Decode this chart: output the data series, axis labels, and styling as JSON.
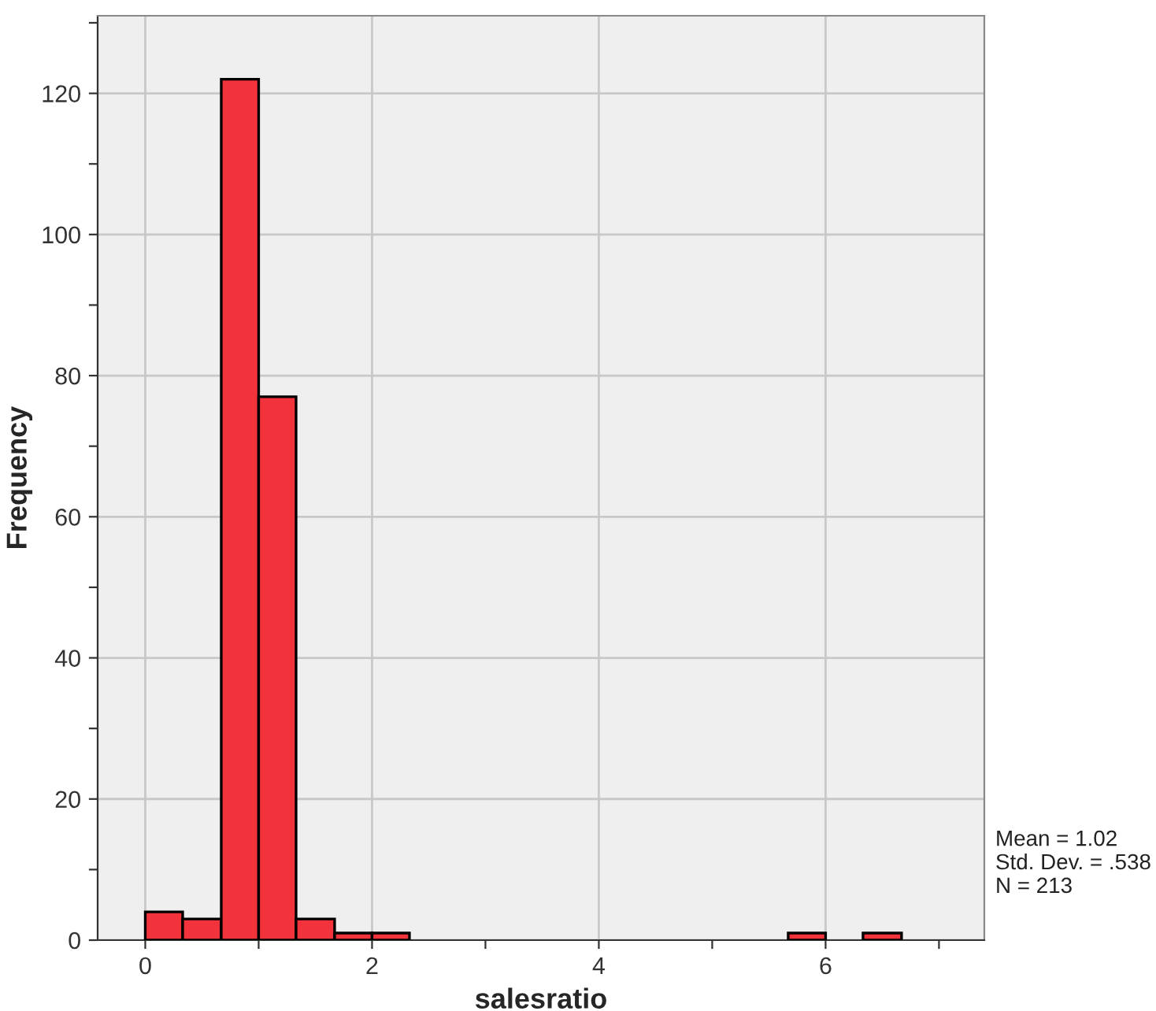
{
  "chart_data": {
    "type": "histogram",
    "xlabel": "salesratio",
    "ylabel": "Frequency",
    "bins": [
      0,
      0.33,
      0.67,
      1,
      1.33,
      1.67,
      2,
      2.33,
      5.67,
      6,
      6.33,
      6.67
    ],
    "values": [
      4,
      3,
      122,
      77,
      3,
      1,
      1,
      0,
      1,
      0,
      1
    ],
    "color": "#f2333b",
    "xlim": [
      -0.42,
      7.4
    ],
    "ylim": [
      0,
      131
    ],
    "xticks": [
      0,
      {
        "value": 1,
        "label": null
      },
      2,
      {
        "value": 3,
        "label": null
      },
      4,
      {
        "value": 5,
        "label": null
      },
      6,
      {
        "value": 7,
        "label": null
      }
    ],
    "yticks": [
      0,
      {
        "value": 10,
        "label": null
      },
      20,
      {
        "value": 30,
        "label": null
      },
      40,
      {
        "value": 50,
        "label": null
      },
      60,
      {
        "value": 70,
        "label": null
      },
      80,
      {
        "value": 90,
        "label": null
      },
      100,
      {
        "value": 110,
        "label": null
      },
      120,
      {
        "value": 130,
        "label": null
      }
    ],
    "grid": true,
    "annotations": [
      "Mean = 1.02\nStd. Dev. = .538\nN = 213"
    ]
  }
}
